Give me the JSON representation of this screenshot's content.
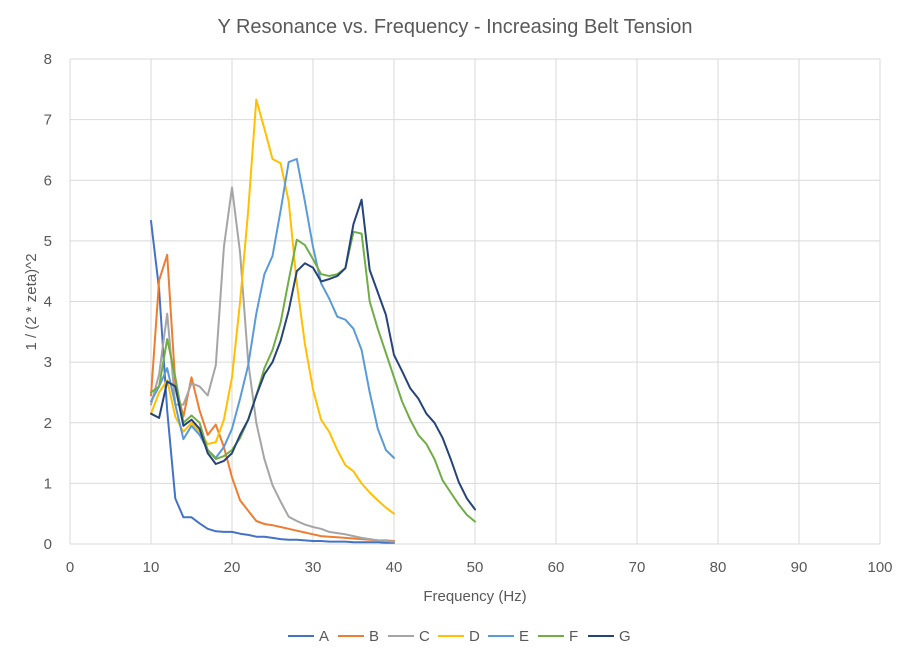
{
  "chart_data": {
    "type": "line",
    "title": "Y Resonance vs. Frequency - Increasing Belt Tension",
    "xlabel": "Frequency (Hz)",
    "ylabel": "1 / (2 * zeta)^2",
    "xlim": [
      0,
      100
    ],
    "ylim": [
      0,
      8
    ],
    "xticks": [
      0,
      10,
      20,
      30,
      40,
      50,
      60,
      70,
      80,
      90,
      100
    ],
    "yticks": [
      0,
      1,
      2,
      3,
      4,
      5,
      6,
      7,
      8
    ],
    "grid": true,
    "legend": "bottom",
    "series": [
      {
        "name": "A",
        "color": "#4472c4",
        "x": [
          10,
          11,
          12,
          13,
          14,
          15,
          16,
          17,
          18,
          19,
          20,
          21,
          22,
          23,
          24,
          25,
          26,
          27,
          28,
          29,
          30,
          31,
          32,
          33,
          34,
          35,
          36,
          37,
          38,
          39,
          40
        ],
        "y": [
          5.33,
          4.2,
          2.2,
          0.75,
          0.44,
          0.44,
          0.34,
          0.25,
          0.21,
          0.2,
          0.2,
          0.17,
          0.15,
          0.12,
          0.12,
          0.1,
          0.08,
          0.07,
          0.07,
          0.06,
          0.05,
          0.05,
          0.04,
          0.04,
          0.04,
          0.03,
          0.03,
          0.03,
          0.03,
          0.02,
          0.02
        ]
      },
      {
        "name": "B",
        "color": "#ed7d31",
        "x": [
          10,
          11,
          12,
          13,
          14,
          15,
          16,
          17,
          18,
          19,
          20,
          21,
          22,
          23,
          24,
          25,
          26,
          27,
          28,
          29,
          30,
          31,
          32,
          33,
          34,
          35,
          36,
          37,
          38,
          39,
          40
        ],
        "y": [
          2.45,
          4.35,
          4.77,
          2.65,
          2.1,
          2.75,
          2.2,
          1.8,
          1.97,
          1.6,
          1.1,
          0.72,
          0.55,
          0.38,
          0.33,
          0.31,
          0.28,
          0.25,
          0.22,
          0.19,
          0.16,
          0.13,
          0.12,
          0.11,
          0.1,
          0.09,
          0.08,
          0.07,
          0.06,
          0.06,
          0.05
        ]
      },
      {
        "name": "C",
        "color": "#a5a5a5",
        "x": [
          10,
          11,
          12,
          13,
          14,
          15,
          16,
          17,
          18,
          19,
          20,
          21,
          22,
          23,
          24,
          25,
          26,
          27,
          28,
          29,
          30,
          31,
          32,
          33,
          34,
          35,
          36,
          37,
          38,
          39,
          40
        ],
        "y": [
          2.3,
          2.8,
          3.8,
          2.3,
          2.3,
          2.65,
          2.6,
          2.45,
          2.95,
          4.9,
          5.88,
          4.8,
          3.0,
          2.0,
          1.4,
          0.97,
          0.7,
          0.45,
          0.38,
          0.32,
          0.28,
          0.25,
          0.2,
          0.18,
          0.16,
          0.13,
          0.1,
          0.08,
          0.06,
          0.05,
          0.04
        ]
      },
      {
        "name": "D",
        "color": "#ffc000",
        "x": [
          10,
          11,
          12,
          13,
          14,
          15,
          16,
          17,
          18,
          19,
          20,
          21,
          22,
          23,
          24,
          25,
          26,
          27,
          28,
          29,
          30,
          31,
          32,
          33,
          34,
          35,
          36,
          37,
          38,
          39,
          40
        ],
        "y": [
          2.15,
          2.5,
          2.7,
          2.1,
          1.85,
          2.0,
          1.85,
          1.65,
          1.68,
          2.05,
          2.75,
          4.0,
          5.5,
          7.33,
          6.85,
          6.35,
          6.28,
          5.65,
          4.3,
          3.3,
          2.55,
          2.05,
          1.85,
          1.55,
          1.3,
          1.2,
          1.0,
          0.85,
          0.72,
          0.6,
          0.5
        ]
      },
      {
        "name": "E",
        "color": "#5b9bd5",
        "x": [
          10,
          11,
          12,
          13,
          14,
          15,
          16,
          17,
          18,
          19,
          20,
          21,
          22,
          23,
          24,
          25,
          26,
          27,
          28,
          29,
          30,
          31,
          32,
          33,
          34,
          35,
          36,
          37,
          38,
          39,
          40
        ],
        "y": [
          2.35,
          2.6,
          2.9,
          2.3,
          1.73,
          1.95,
          1.8,
          1.55,
          1.42,
          1.6,
          1.9,
          2.4,
          2.95,
          3.8,
          4.45,
          4.75,
          5.5,
          6.3,
          6.35,
          5.65,
          4.9,
          4.3,
          4.05,
          3.75,
          3.7,
          3.55,
          3.2,
          2.5,
          1.9,
          1.55,
          1.42
        ]
      },
      {
        "name": "F",
        "color": "#70ad47",
        "x": [
          10,
          11,
          12,
          13,
          14,
          15,
          16,
          17,
          18,
          19,
          20,
          21,
          22,
          23,
          24,
          25,
          26,
          27,
          28,
          29,
          30,
          31,
          32,
          33,
          34,
          35,
          36,
          37,
          38,
          39,
          40,
          41,
          42,
          43,
          44,
          45,
          46,
          47,
          48,
          49,
          50
        ],
        "y": [
          2.5,
          2.6,
          3.38,
          2.75,
          2.0,
          2.12,
          2.0,
          1.55,
          1.4,
          1.45,
          1.55,
          1.75,
          2.05,
          2.45,
          2.9,
          3.2,
          3.65,
          4.35,
          5.02,
          4.93,
          4.7,
          4.45,
          4.42,
          4.45,
          4.55,
          5.15,
          5.12,
          4.0,
          3.55,
          3.15,
          2.75,
          2.35,
          2.05,
          1.8,
          1.65,
          1.4,
          1.05,
          0.85,
          0.65,
          0.48,
          0.37
        ]
      },
      {
        "name": "G",
        "color": "#264478",
        "x": [
          10,
          11,
          12,
          13,
          14,
          15,
          16,
          17,
          18,
          19,
          20,
          21,
          22,
          23,
          24,
          25,
          26,
          27,
          28,
          29,
          30,
          31,
          32,
          33,
          34,
          35,
          36,
          37,
          38,
          39,
          40,
          41,
          42,
          43,
          44,
          45,
          46,
          47,
          48,
          49,
          50
        ],
        "y": [
          2.15,
          2.08,
          2.68,
          2.6,
          1.95,
          2.05,
          1.9,
          1.5,
          1.32,
          1.37,
          1.5,
          1.8,
          2.05,
          2.45,
          2.8,
          3.0,
          3.35,
          3.85,
          4.5,
          4.63,
          4.56,
          4.33,
          4.37,
          4.42,
          4.55,
          5.28,
          5.68,
          4.52,
          4.15,
          3.78,
          3.12,
          2.85,
          2.57,
          2.4,
          2.15,
          2.0,
          1.75,
          1.4,
          1.02,
          0.75,
          0.57
        ]
      }
    ]
  }
}
